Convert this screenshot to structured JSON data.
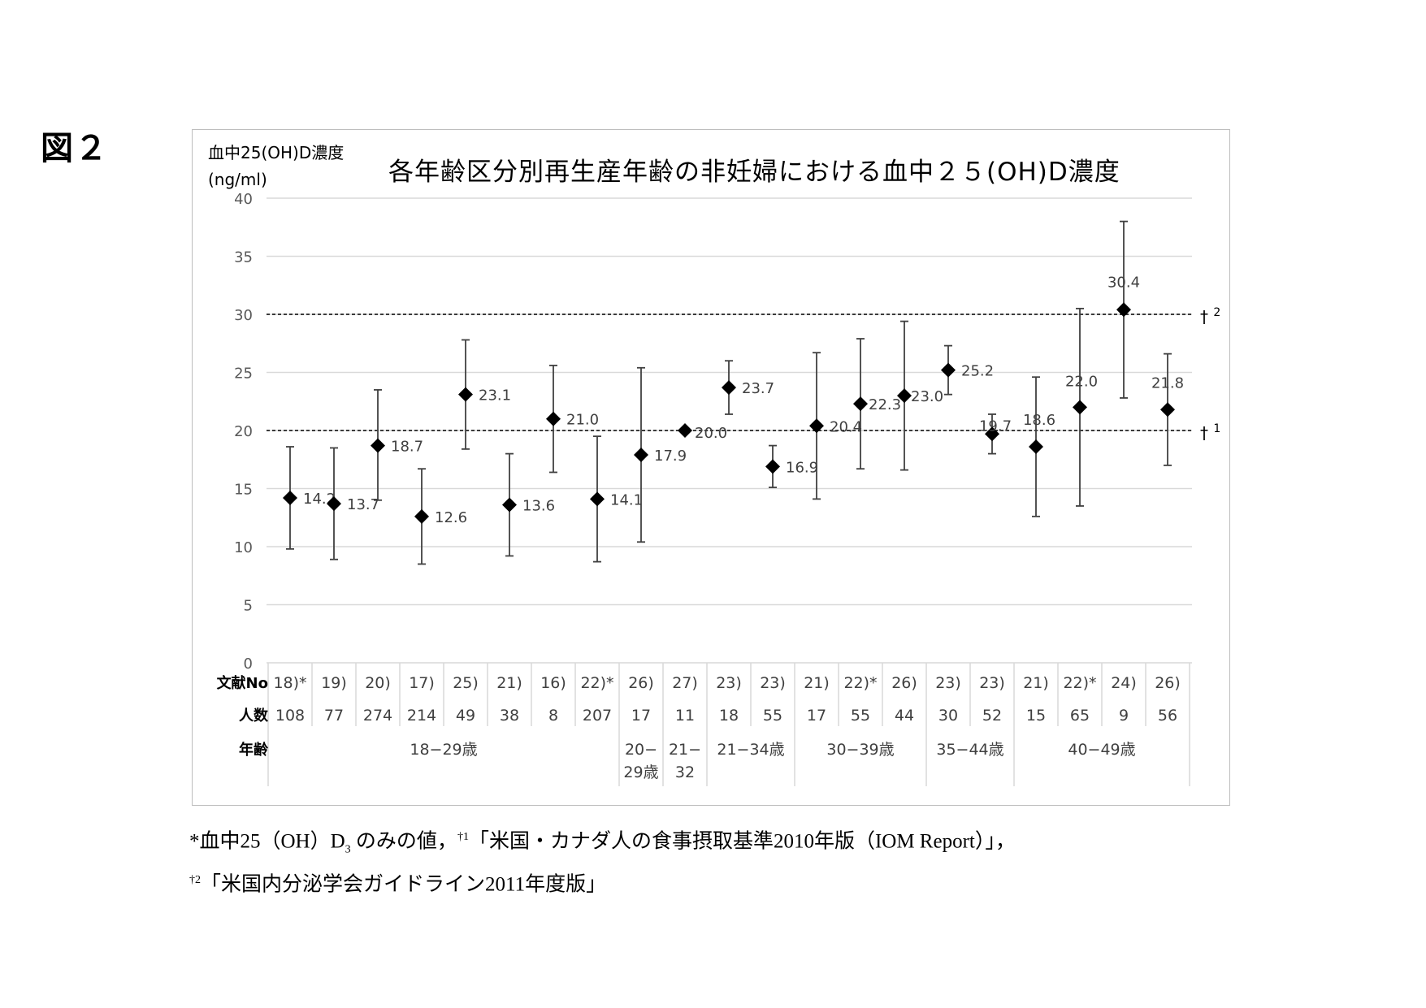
{
  "figure_label": "図２",
  "chart_data": {
    "type": "scatter",
    "title": "各年齢区分別再生産年齢の非妊婦における血中２５(OH)D濃度",
    "ylabel_line1": "血中25(OH)D濃度",
    "ylabel_line2": "(ng/ml)",
    "ylim": [
      0,
      40
    ],
    "yticks": [
      "0",
      "5",
      "10",
      "15",
      "20",
      "25",
      "30",
      "35",
      "40"
    ],
    "grid": true,
    "points": [
      {
        "ref": "18)*",
        "n": "108",
        "value": 14.2,
        "label": "14.2",
        "low": 9.8,
        "high": 18.6
      },
      {
        "ref": "19)",
        "n": "77",
        "value": 13.7,
        "label": "13.7",
        "low": 8.9,
        "high": 18.5
      },
      {
        "ref": "20)",
        "n": "274",
        "value": 18.7,
        "label": "18.7",
        "low": 14.0,
        "high": 23.5
      },
      {
        "ref": "17)",
        "n": "214",
        "value": 12.6,
        "label": "12.6",
        "low": 8.5,
        "high": 16.7
      },
      {
        "ref": "25)",
        "n": "49",
        "value": 23.1,
        "label": "23.1",
        "low": 18.4,
        "high": 27.8
      },
      {
        "ref": "21)",
        "n": "38",
        "value": 13.6,
        "label": "13.6",
        "low": 9.2,
        "high": 18.0
      },
      {
        "ref": "16)",
        "n": "8",
        "value": 21.0,
        "label": "21.0",
        "low": 16.4,
        "high": 25.6
      },
      {
        "ref": "22)*",
        "n": "207",
        "value": 14.1,
        "label": "14.1",
        "low": 8.7,
        "high": 19.5
      },
      {
        "ref": "26)",
        "n": "17",
        "value": 17.9,
        "label": "17.9",
        "low": 10.4,
        "high": 25.4
      },
      {
        "ref": "27)",
        "n": "11",
        "value": 20.0,
        "label": "20.0",
        "low": 20.0,
        "high": 20.0
      },
      {
        "ref": "23)",
        "n": "18",
        "value": 23.7,
        "label": "23.7",
        "low": 21.4,
        "high": 26.0
      },
      {
        "ref": "23)",
        "n": "55",
        "value": 16.9,
        "label": "16.9",
        "low": 15.1,
        "high": 18.7
      },
      {
        "ref": "21)",
        "n": "17",
        "value": 20.4,
        "label": "20.4",
        "low": 14.1,
        "high": 26.7
      },
      {
        "ref": "22)*",
        "n": "55",
        "value": 22.3,
        "label": "22.3",
        "low": 16.7,
        "high": 27.9
      },
      {
        "ref": "26)",
        "n": "44",
        "value": 23.0,
        "label": "23.0",
        "low": 16.6,
        "high": 29.4
      },
      {
        "ref": "23)",
        "n": "30",
        "value": 25.2,
        "label": "25.2",
        "low": 23.1,
        "high": 27.3
      },
      {
        "ref": "23)",
        "n": "52",
        "value": 19.7,
        "label": "19.7",
        "low": 18.0,
        "high": 21.4
      },
      {
        "ref": "21)",
        "n": "15",
        "value": 18.6,
        "label": "18.6",
        "low": 12.6,
        "high": 24.6
      },
      {
        "ref": "22)*",
        "n": "65",
        "value": 22.0,
        "label": "22.0",
        "low": 13.5,
        "high": 30.5
      },
      {
        "ref": "24)",
        "n": "9",
        "value": 30.4,
        "label": "30.4",
        "low": 22.8,
        "high": 38.0
      },
      {
        "ref": "26)",
        "n": "56",
        "value": 21.8,
        "label": "21.8",
        "low": 17.0,
        "high": 26.6
      }
    ],
    "reference_lines": [
      {
        "value": 30,
        "label": "† ",
        "sup": "2"
      },
      {
        "value": 20,
        "label": "† ",
        "sup": "1"
      }
    ],
    "table_rows": {
      "ref_header": "文献No",
      "n_header": "人数",
      "age_header": "年齢"
    },
    "age_groups": [
      {
        "label": "18−29歳",
        "start": 0,
        "span": 8
      },
      {
        "label": "20−",
        "label2": "29歳",
        "start": 8,
        "span": 1
      },
      {
        "label": "21−",
        "label2": "32",
        "start": 9,
        "span": 1
      },
      {
        "label": "21−34歳",
        "start": 10,
        "span": 2
      },
      {
        "label": "30−39歳",
        "start": 12,
        "span": 3
      },
      {
        "label": "35−44歳",
        "start": 15,
        "span": 2
      },
      {
        "label": "40−49歳",
        "start": 17,
        "span": 4
      }
    ]
  },
  "footnotes": {
    "line1_a": "*血中25（OH）D",
    "line1_sub": "3",
    "line1_b": " のみの値，",
    "line1_sup": "†1",
    "line1_c": "「米国・カナダ人の食事摂取基準2010年版（IOM Report）」，",
    "line2_sup": "†2",
    "line2_text": "「米国内分泌学会ガイドライン2011年度版」"
  },
  "colors": {
    "marker": "#000000",
    "errorbar": "#404040",
    "grid": "#d9d9d9",
    "refline": "#000000"
  }
}
